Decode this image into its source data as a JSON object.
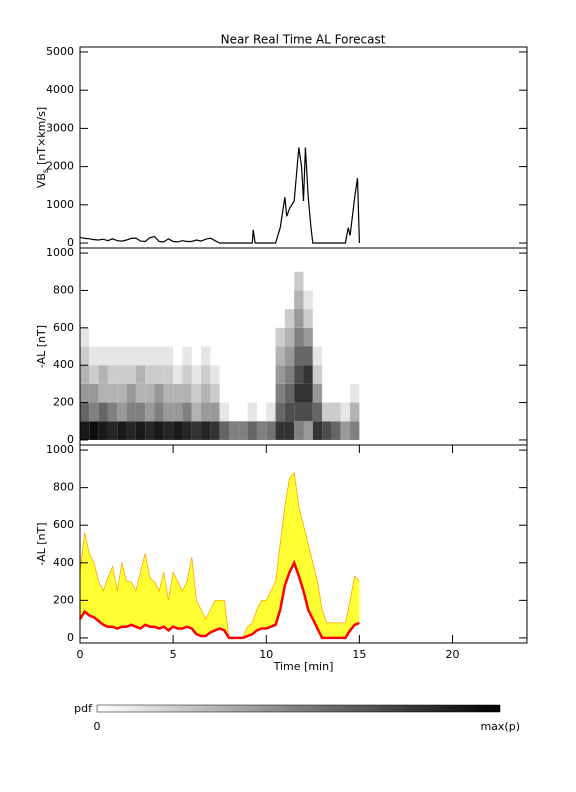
{
  "title": "Near Real Time AL Forecast",
  "chart_data": [
    {
      "type": "line",
      "ylabel": {
        "text": "VB",
        "subscript": "s",
        "unit": "[nT×km/s]"
      },
      "xlim": [
        0,
        24
      ],
      "ylim": [
        -130,
        5130
      ],
      "yticks": [
        0,
        1000,
        2000,
        3000,
        4000,
        5000
      ],
      "color": "#000000",
      "x": [
        0,
        0.25,
        0.5,
        0.75,
        1,
        1.25,
        1.5,
        1.75,
        2,
        2.25,
        2.5,
        2.75,
        3,
        3.25,
        3.5,
        3.75,
        4,
        4.25,
        4.5,
        4.75,
        5,
        5.25,
        5.5,
        5.75,
        6,
        6.25,
        6.5,
        6.75,
        7,
        7.25,
        7.5,
        9.25,
        9.3,
        9.4,
        10.5,
        10.75,
        11,
        11.1,
        11.25,
        11.5,
        11.75,
        11.9,
        12,
        12.1,
        12.25,
        12.4,
        12.5,
        14.25,
        14.4,
        14.5,
        14.75,
        14.9,
        15
      ],
      "values": [
        150,
        120,
        110,
        90,
        80,
        100,
        60,
        110,
        60,
        50,
        80,
        120,
        130,
        50,
        40,
        140,
        170,
        40,
        30,
        110,
        40,
        30,
        60,
        40,
        40,
        80,
        50,
        100,
        130,
        60,
        0,
        0,
        350,
        0,
        0,
        400,
        1200,
        700,
        900,
        1100,
        2500,
        2000,
        1100,
        2500,
        1200,
        400,
        0,
        0,
        400,
        200,
        1200,
        1700,
        0
      ]
    },
    {
      "type": "heatmap",
      "ylabel": "-AL [nT]",
      "xlim": [
        0,
        24
      ],
      "ylim": [
        -27,
        1027
      ],
      "yticks": [
        0,
        200,
        400,
        600,
        800,
        1000
      ],
      "xbins": [
        0,
        0.5,
        1,
        1.5,
        2,
        2.5,
        3,
        3.5,
        4,
        4.5,
        5,
        5.5,
        6,
        6.5,
        7,
        7.5,
        8,
        8.5,
        9,
        9.5,
        10,
        10.5,
        11,
        11.5,
        12,
        12.5,
        13,
        13.5,
        14,
        14.5,
        15
      ],
      "ybins": [
        0,
        100,
        200,
        300,
        400,
        500,
        600,
        700,
        800,
        900
      ],
      "cells": [
        [
          0.9,
          0.6,
          0.4,
          0.3,
          0.2,
          0.1,
          0,
          0,
          0
        ],
        [
          0.95,
          0.5,
          0.4,
          0.2,
          0.1,
          0,
          0,
          0,
          0
        ],
        [
          0.9,
          0.6,
          0.3,
          0.3,
          0.1,
          0,
          0,
          0,
          0
        ],
        [
          0.85,
          0.5,
          0.3,
          0.2,
          0.1,
          0,
          0,
          0,
          0
        ],
        [
          0.9,
          0.4,
          0.3,
          0.2,
          0.1,
          0,
          0,
          0,
          0
        ],
        [
          0.85,
          0.5,
          0.4,
          0.2,
          0.1,
          0,
          0,
          0,
          0
        ],
        [
          0.9,
          0.5,
          0.3,
          0.3,
          0.1,
          0,
          0,
          0,
          0
        ],
        [
          0.85,
          0.4,
          0.3,
          0.2,
          0.1,
          0,
          0,
          0,
          0
        ],
        [
          0.9,
          0.5,
          0.4,
          0.2,
          0.1,
          0,
          0,
          0,
          0
        ],
        [
          0.85,
          0.4,
          0.3,
          0.2,
          0.1,
          0,
          0,
          0,
          0
        ],
        [
          0.9,
          0.4,
          0.3,
          0.1,
          0,
          0,
          0,
          0,
          0
        ],
        [
          0.85,
          0.5,
          0.3,
          0.2,
          0.1,
          0,
          0,
          0,
          0
        ],
        [
          0.8,
          0.3,
          0.2,
          0.1,
          0,
          0,
          0,
          0,
          0
        ],
        [
          0.85,
          0.4,
          0.3,
          0.2,
          0.1,
          0,
          0,
          0,
          0
        ],
        [
          0.8,
          0.4,
          0.2,
          0.1,
          0,
          0,
          0,
          0,
          0
        ],
        [
          0.6,
          0.1,
          0,
          0,
          0,
          0,
          0,
          0,
          0
        ],
        [
          0.5,
          0,
          0,
          0,
          0,
          0,
          0,
          0,
          0
        ],
        [
          0.5,
          0,
          0,
          0,
          0,
          0,
          0,
          0,
          0
        ],
        [
          0.6,
          0.1,
          0,
          0,
          0,
          0,
          0,
          0,
          0
        ],
        [
          0.5,
          0,
          0,
          0,
          0,
          0,
          0,
          0,
          0
        ],
        [
          0.55,
          0.1,
          0,
          0,
          0,
          0,
          0,
          0,
          0
        ],
        [
          0.8,
          0.6,
          0.5,
          0.4,
          0.3,
          0.2,
          0,
          0,
          0
        ],
        [
          0.8,
          0.7,
          0.6,
          0.5,
          0.4,
          0.3,
          0.2,
          0,
          0
        ],
        [
          0.5,
          0.7,
          0.8,
          0.7,
          0.6,
          0.5,
          0.4,
          0.3,
          0.2
        ],
        [
          0.4,
          0.7,
          0.8,
          0.8,
          0.6,
          0.4,
          0.2,
          0.1,
          0
        ],
        [
          0.8,
          0.6,
          0.4,
          0.2,
          0.1,
          0,
          0,
          0,
          0
        ],
        [
          0.7,
          0.2,
          0,
          0,
          0,
          0,
          0,
          0,
          0
        ],
        [
          0.6,
          0.2,
          0,
          0,
          0,
          0,
          0,
          0,
          0
        ],
        [
          0.4,
          0.1,
          0,
          0,
          0,
          0,
          0,
          0,
          0
        ],
        [
          0.5,
          0.3,
          0.1,
          0,
          0,
          0,
          0,
          0,
          0
        ]
      ]
    },
    {
      "type": "band",
      "ylabel": "-AL [nT]",
      "xlabel": "Time [min]",
      "xlim": [
        0,
        24
      ],
      "ylim": [
        -27,
        1027
      ],
      "yticks": [
        0,
        200,
        400,
        600,
        800,
        1000
      ],
      "xticks": [
        0,
        5,
        10,
        15,
        20
      ],
      "x": [
        0,
        0.25,
        0.5,
        0.75,
        1,
        1.25,
        1.5,
        1.75,
        2,
        2.25,
        2.5,
        2.75,
        3,
        3.25,
        3.5,
        3.75,
        4,
        4.25,
        4.5,
        4.75,
        5,
        5.25,
        5.5,
        5.75,
        6,
        6.25,
        6.5,
        6.75,
        7,
        7.25,
        7.5,
        7.75,
        8,
        8.25,
        8.5,
        8.75,
        9,
        9.25,
        9.5,
        9.75,
        10,
        10.25,
        10.5,
        10.75,
        11,
        11.25,
        11.5,
        11.75,
        12,
        12.25,
        12.5,
        12.75,
        13,
        13.25,
        13.5,
        13.75,
        14,
        14.25,
        14.5,
        14.75,
        15
      ],
      "fill": "#ffff33",
      "series": [
        {
          "color": "#ff0000",
          "values": [
            100,
            140,
            120,
            110,
            90,
            70,
            60,
            60,
            50,
            60,
            60,
            70,
            60,
            50,
            70,
            60,
            60,
            50,
            60,
            40,
            60,
            50,
            50,
            60,
            50,
            20,
            10,
            10,
            30,
            40,
            50,
            40,
            0,
            0,
            0,
            0,
            10,
            20,
            40,
            50,
            50,
            60,
            70,
            150,
            280,
            350,
            400,
            330,
            250,
            150,
            100,
            50,
            0,
            0,
            0,
            0,
            0,
            0,
            40,
            70,
            80
          ]
        },
        {
          "color": "#ffa500",
          "values": [
            350,
            560,
            450,
            400,
            300,
            250,
            320,
            380,
            250,
            400,
            300,
            300,
            250,
            350,
            450,
            320,
            300,
            250,
            350,
            200,
            350,
            300,
            250,
            300,
            430,
            200,
            150,
            100,
            150,
            200,
            200,
            200,
            0,
            0,
            0,
            0,
            60,
            80,
            150,
            200,
            200,
            250,
            300,
            500,
            700,
            850,
            880,
            700,
            600,
            500,
            400,
            300,
            150,
            80,
            80,
            80,
            80,
            80,
            200,
            330,
            300
          ]
        }
      ]
    }
  ],
  "colorbar": {
    "label": "pdf",
    "min_label": "0",
    "max_label": "max(p)"
  }
}
